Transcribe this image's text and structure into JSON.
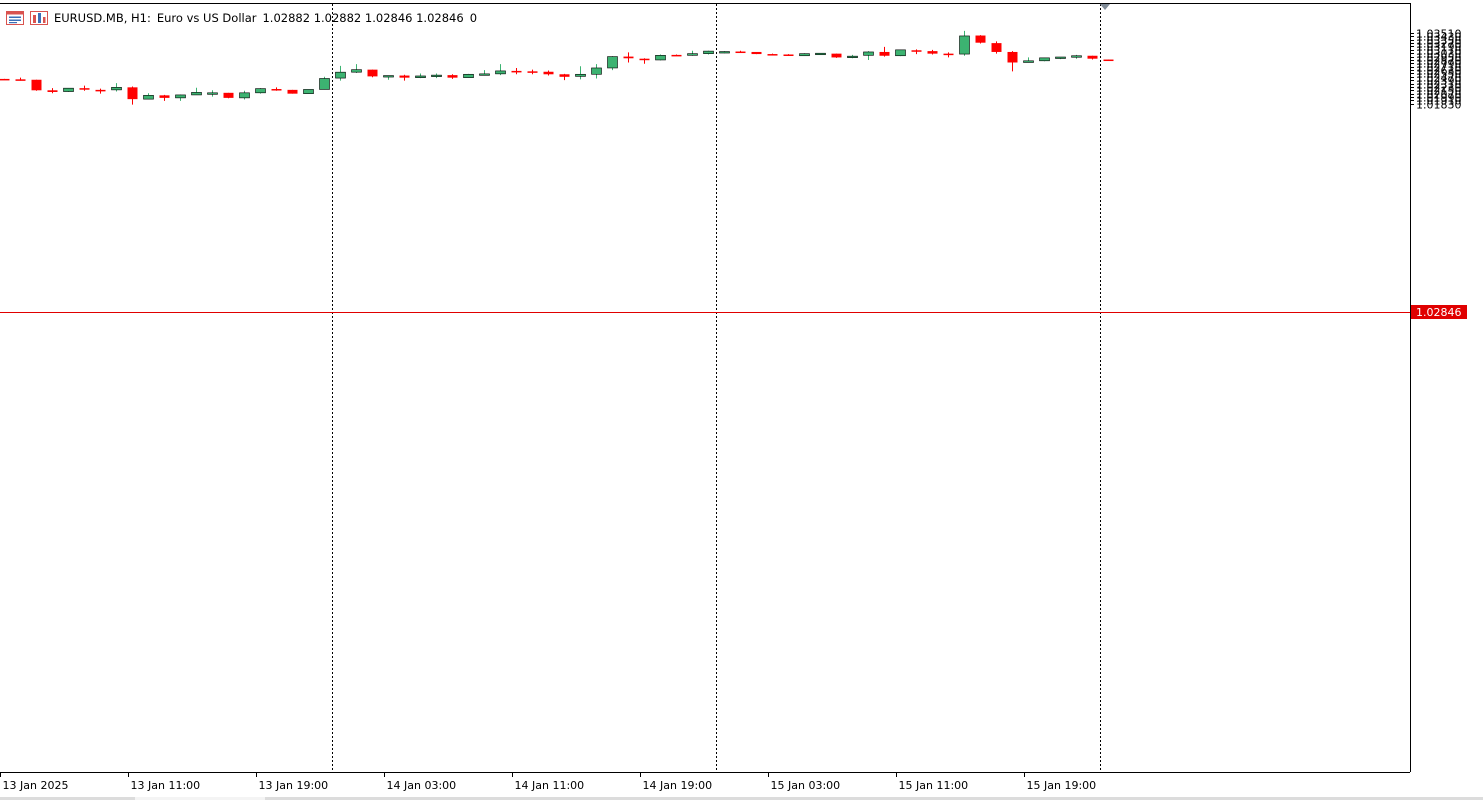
{
  "header": {
    "symbol": "EURUSD.MB, H1:",
    "description": "Euro vs US Dollar",
    "ohlc": "1.02882 1.02882 1.02846 1.02846",
    "volume": "0",
    "icons": [
      "trade-window-icon",
      "chart-depth-icon"
    ]
  },
  "price_label": "1.02846",
  "colors": {
    "bull": "#3cb371",
    "bear": "#ff0000",
    "bid_line": "#e00000",
    "background": "#ffffff",
    "axis": "#000000"
  },
  "chart_data": {
    "type": "candlestick",
    "symbol": "EURUSD.MB",
    "timeframe": "H1",
    "current_price": 1.02846,
    "y_range": [
      1.0178,
      1.0358
    ],
    "y_ticks": [
      "1.01830",
      "1.01910",
      "1.01990",
      "1.02070",
      "1.02150",
      "1.02230",
      "1.02310",
      "1.02390",
      "1.02470",
      "1.02550",
      "1.02630",
      "1.02710",
      "1.02790",
      "1.02870",
      "1.02950",
      "1.03030",
      "1.03110",
      "1.03190",
      "1.03270",
      "1.03350",
      "1.03430",
      "1.03510"
    ],
    "x_labels": [
      "13 Jan 2025",
      "13 Jan 11:00",
      "13 Jan 19:00",
      "14 Jan 03:00",
      "14 Jan 11:00",
      "14 Jan 19:00",
      "15 Jan 03:00",
      "15 Jan 11:00",
      "15 Jan 19:00"
    ],
    "day_separators_after_bar": [
      20,
      44,
      68
    ],
    "candles": [
      {
        "o": 1.0242,
        "h": 1.0242,
        "l": 1.0241,
        "c": 1.0241
      },
      {
        "o": 1.0241,
        "h": 1.0245,
        "l": 1.0238,
        "c": 1.0239
      },
      {
        "o": 1.024,
        "h": 1.024,
        "l": 1.0214,
        "c": 1.0215
      },
      {
        "o": 1.0215,
        "h": 1.022,
        "l": 1.0208,
        "c": 1.0211
      },
      {
        "o": 1.0212,
        "h": 1.022,
        "l": 1.0211,
        "c": 1.022
      },
      {
        "o": 1.022,
        "h": 1.0226,
        "l": 1.0214,
        "c": 1.0218
      },
      {
        "o": 1.0216,
        "h": 1.0219,
        "l": 1.0207,
        "c": 1.0215
      },
      {
        "o": 1.0216,
        "h": 1.0232,
        "l": 1.0212,
        "c": 1.0222
      },
      {
        "o": 1.0222,
        "h": 1.0224,
        "l": 1.0181,
        "c": 1.0194
      },
      {
        "o": 1.0194,
        "h": 1.0208,
        "l": 1.0194,
        "c": 1.0203
      },
      {
        "o": 1.0203,
        "h": 1.0204,
        "l": 1.019,
        "c": 1.0197
      },
      {
        "o": 1.0197,
        "h": 1.0205,
        "l": 1.019,
        "c": 1.0204
      },
      {
        "o": 1.0204,
        "h": 1.0221,
        "l": 1.0204,
        "c": 1.021
      },
      {
        "o": 1.0209,
        "h": 1.0215,
        "l": 1.02,
        "c": 1.0209
      },
      {
        "o": 1.0209,
        "h": 1.0209,
        "l": 1.0196,
        "c": 1.0197
      },
      {
        "o": 1.0197,
        "h": 1.0214,
        "l": 1.0193,
        "c": 1.0209
      },
      {
        "o": 1.0209,
        "h": 1.022,
        "l": 1.0207,
        "c": 1.0219
      },
      {
        "o": 1.0218,
        "h": 1.0222,
        "l": 1.0214,
        "c": 1.0216
      },
      {
        "o": 1.0216,
        "h": 1.0216,
        "l": 1.0207,
        "c": 1.0207
      },
      {
        "o": 1.0207,
        "h": 1.0217,
        "l": 1.0207,
        "c": 1.0217
      },
      {
        "o": 1.0217,
        "h": 1.0247,
        "l": 1.0217,
        "c": 1.0243
      },
      {
        "o": 1.0244,
        "h": 1.0273,
        "l": 1.0238,
        "c": 1.0258
      },
      {
        "o": 1.0258,
        "h": 1.0277,
        "l": 1.0256,
        "c": 1.0264
      },
      {
        "o": 1.0264,
        "h": 1.0264,
        "l": 1.0246,
        "c": 1.0248
      },
      {
        "o": 1.0248,
        "h": 1.025,
        "l": 1.024,
        "c": 1.025
      },
      {
        "o": 1.025,
        "h": 1.0252,
        "l": 1.0238,
        "c": 1.0245
      },
      {
        "o": 1.0245,
        "h": 1.0255,
        "l": 1.0244,
        "c": 1.0249
      },
      {
        "o": 1.0249,
        "h": 1.0255,
        "l": 1.0244,
        "c": 1.0251
      },
      {
        "o": 1.0251,
        "h": 1.0253,
        "l": 1.0242,
        "c": 1.0245
      },
      {
        "o": 1.0245,
        "h": 1.0254,
        "l": 1.0245,
        "c": 1.0253
      },
      {
        "o": 1.0253,
        "h": 1.0263,
        "l": 1.025,
        "c": 1.0254
      },
      {
        "o": 1.0254,
        "h": 1.0277,
        "l": 1.0251,
        "c": 1.0261
      },
      {
        "o": 1.0261,
        "h": 1.0268,
        "l": 1.0253,
        "c": 1.0259
      },
      {
        "o": 1.026,
        "h": 1.0264,
        "l": 1.0253,
        "c": 1.0258
      },
      {
        "o": 1.0259,
        "h": 1.0262,
        "l": 1.025,
        "c": 1.0253
      },
      {
        "o": 1.0253,
        "h": 1.0254,
        "l": 1.0239,
        "c": 1.0247
      },
      {
        "o": 1.0248,
        "h": 1.0272,
        "l": 1.0241,
        "c": 1.0253
      },
      {
        "o": 1.0253,
        "h": 1.0277,
        "l": 1.0243,
        "c": 1.0268
      },
      {
        "o": 1.0268,
        "h": 1.0296,
        "l": 1.0263,
        "c": 1.0295
      },
      {
        "o": 1.0295,
        "h": 1.0305,
        "l": 1.0281,
        "c": 1.0291
      },
      {
        "o": 1.029,
        "h": 1.0291,
        "l": 1.0278,
        "c": 1.0287
      },
      {
        "o": 1.0287,
        "h": 1.03,
        "l": 1.0286,
        "c": 1.0298
      },
      {
        "o": 1.0299,
        "h": 1.03,
        "l": 1.0297,
        "c": 1.0298
      },
      {
        "o": 1.0298,
        "h": 1.0309,
        "l": 1.0297,
        "c": 1.0302
      },
      {
        "o": 1.0302,
        "h": 1.0309,
        "l": 1.03,
        "c": 1.0308
      },
      {
        "o": 1.0305,
        "h": 1.0308,
        "l": 1.0303,
        "c": 1.0307
      },
      {
        "o": 1.0307,
        "h": 1.0309,
        "l": 1.0304,
        "c": 1.0306
      },
      {
        "o": 1.0306,
        "h": 1.0306,
        "l": 1.0301,
        "c": 1.0301
      },
      {
        "o": 1.0301,
        "h": 1.0302,
        "l": 1.0299,
        "c": 1.03
      },
      {
        "o": 1.03,
        "h": 1.0301,
        "l": 1.0297,
        "c": 1.0297
      },
      {
        "o": 1.0297,
        "h": 1.0303,
        "l": 1.0297,
        "c": 1.0302
      },
      {
        "o": 1.0302,
        "h": 1.0303,
        "l": 1.0301,
        "c": 1.0303
      },
      {
        "o": 1.0302,
        "h": 1.0302,
        "l": 1.0292,
        "c": 1.0293
      },
      {
        "o": 1.0293,
        "h": 1.0299,
        "l": 1.0291,
        "c": 1.0296
      },
      {
        "o": 1.0298,
        "h": 1.0308,
        "l": 1.0287,
        "c": 1.0306
      },
      {
        "o": 1.0306,
        "h": 1.0318,
        "l": 1.0295,
        "c": 1.0297
      },
      {
        "o": 1.0297,
        "h": 1.0311,
        "l": 1.0296,
        "c": 1.0311
      },
      {
        "o": 1.031,
        "h": 1.0312,
        "l": 1.0301,
        "c": 1.0308
      },
      {
        "o": 1.0308,
        "h": 1.0311,
        "l": 1.03,
        "c": 1.0302
      },
      {
        "o": 1.0302,
        "h": 1.0305,
        "l": 1.0293,
        "c": 1.0301
      },
      {
        "o": 1.0301,
        "h": 1.0356,
        "l": 1.0297,
        "c": 1.0344
      },
      {
        "o": 1.0345,
        "h": 1.0346,
        "l": 1.0326,
        "c": 1.0328
      },
      {
        "o": 1.0327,
        "h": 1.0331,
        "l": 1.0302,
        "c": 1.0306
      },
      {
        "o": 1.0306,
        "h": 1.0308,
        "l": 1.026,
        "c": 1.0281
      },
      {
        "o": 1.0281,
        "h": 1.0293,
        "l": 1.0281,
        "c": 1.0285
      },
      {
        "o": 1.0285,
        "h": 1.0292,
        "l": 1.0284,
        "c": 1.0292
      },
      {
        "o": 1.0292,
        "h": 1.0294,
        "l": 1.0289,
        "c": 1.0294
      },
      {
        "o": 1.0294,
        "h": 1.0299,
        "l": 1.029,
        "c": 1.0297
      },
      {
        "o": 1.0297,
        "h": 1.0297,
        "l": 1.0288,
        "c": 1.029
      },
      {
        "o": 1.0288,
        "h": 1.0288,
        "l": 1.0285,
        "c": 1.0285
      }
    ]
  }
}
